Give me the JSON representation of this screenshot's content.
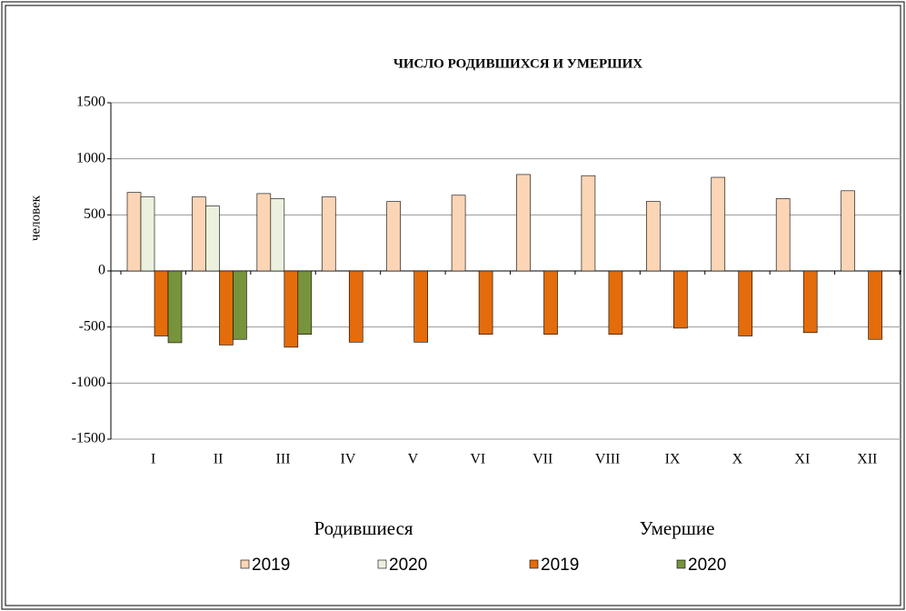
{
  "chart_data": {
    "type": "bar",
    "title": "ЧИСЛО РОДИВШИХСЯ  И УМЕРШИХ",
    "y_label": "человек",
    "categories": [
      "I",
      "II",
      "III",
      "IV",
      "V",
      "VI",
      "VII",
      "VIII",
      "IX",
      "X",
      "XI",
      "XII"
    ],
    "legend_groups": [
      "Родившиеся",
      "Умершие"
    ],
    "series": [
      {
        "name": "2019",
        "color": "#fbd5b5",
        "values": [
          700,
          660,
          690,
          660,
          620,
          675,
          860,
          850,
          620,
          835,
          645,
          715
        ]
      },
      {
        "name": "2020",
        "color": "#ebf1de",
        "values": [
          660,
          580,
          645,
          null,
          null,
          null,
          null,
          null,
          null,
          null,
          null,
          null
        ]
      },
      {
        "name": "2019",
        "color": "#e46c0a",
        "values": [
          -580,
          -660,
          -680,
          -635,
          -635,
          -565,
          -565,
          -565,
          -510,
          -580,
          -550,
          -610
        ]
      },
      {
        "name": "2020",
        "color": "#77933c",
        "values": [
          -640,
          -610,
          -565,
          null,
          null,
          null,
          null,
          null,
          null,
          null,
          null,
          null
        ]
      }
    ],
    "ylim": [
      -1500,
      1500
    ],
    "yticks": [
      -1500,
      -1000,
      -500,
      0,
      500,
      1000,
      1500
    ],
    "grid": true
  }
}
